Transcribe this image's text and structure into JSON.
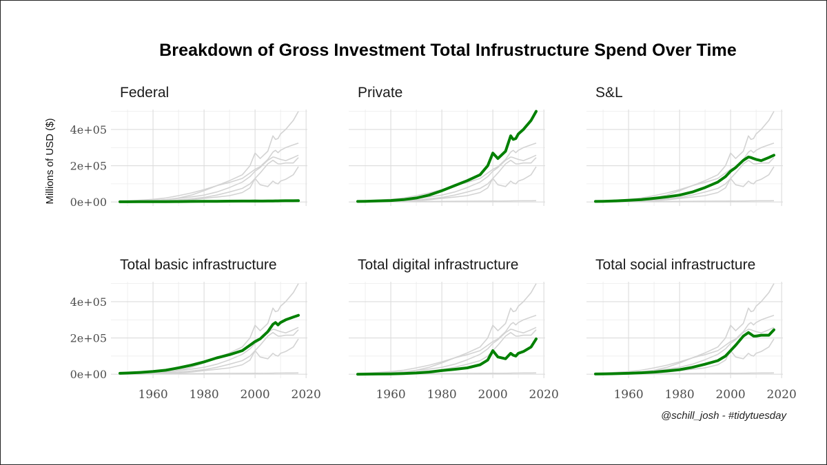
{
  "title": "Breakdown of Gross Investment Total Infrustructure Spend Over Time",
  "caption": "@schill_josh - #tidytuesday",
  "colors": {
    "highlight": "#008000",
    "background_series": "#d3d3d3",
    "grid": "#dcdcdc"
  },
  "chart_data": {
    "type": "line",
    "layout": "small-multiples-3x2",
    "ylabel": "Millions of USD ($)",
    "xlim": [
      1947,
      2017
    ],
    "ylim": [
      0,
      500000
    ],
    "x_ticks": [
      1960,
      1980,
      2000,
      2020
    ],
    "x_tick_labels": [
      "1960",
      "1980",
      "2000",
      "2020"
    ],
    "y_ticks": [
      0,
      200000,
      400000
    ],
    "y_tick_labels": [
      "0e+00",
      "2e+05",
      "4e+05"
    ],
    "grid": true,
    "x": [
      1947,
      1950,
      1955,
      1960,
      1965,
      1970,
      1975,
      1980,
      1985,
      1990,
      1995,
      1998,
      2000,
      2002,
      2005,
      2007,
      2008,
      2009,
      2010,
      2012,
      2015,
      2017
    ],
    "series": [
      {
        "name": "Federal",
        "values": [
          1000,
          1200,
          1500,
          1800,
          2100,
          2500,
          3000,
          3500,
          4000,
          4500,
          4800,
          5000,
          5200,
          5000,
          5300,
          5600,
          6000,
          6300,
          6500,
          6700,
          7000,
          7300
        ]
      },
      {
        "name": "Private",
        "values": [
          3000,
          4000,
          6000,
          8000,
          13000,
          22000,
          38000,
          62000,
          90000,
          118000,
          150000,
          200000,
          270000,
          240000,
          280000,
          365000,
          345000,
          350000,
          375000,
          400000,
          450000,
          500000
        ]
      },
      {
        "name": "S&L",
        "values": [
          3000,
          4000,
          6000,
          9000,
          13000,
          20000,
          28000,
          38000,
          55000,
          80000,
          110000,
          140000,
          170000,
          190000,
          230000,
          248000,
          245000,
          240000,
          235000,
          228000,
          245000,
          258000
        ]
      },
      {
        "name": "Total basic infrastructure",
        "values": [
          5000,
          6500,
          10000,
          15000,
          22000,
          35000,
          50000,
          68000,
          90000,
          108000,
          130000,
          160000,
          180000,
          195000,
          235000,
          275000,
          285000,
          272000,
          285000,
          300000,
          315000,
          325000
        ]
      },
      {
        "name": "Total digital infrastructure",
        "values": [
          0,
          500,
          1000,
          2000,
          4000,
          7000,
          12000,
          20000,
          27000,
          35000,
          52000,
          78000,
          130000,
          95000,
          85000,
          115000,
          105000,
          100000,
          115000,
          125000,
          150000,
          195000
        ]
      },
      {
        "name": "Total social infrastructure",
        "values": [
          1000,
          1500,
          3000,
          5000,
          8000,
          12000,
          18000,
          25000,
          38000,
          55000,
          75000,
          100000,
          130000,
          160000,
          210000,
          230000,
          220000,
          210000,
          210000,
          215000,
          215000,
          245000
        ]
      }
    ]
  }
}
